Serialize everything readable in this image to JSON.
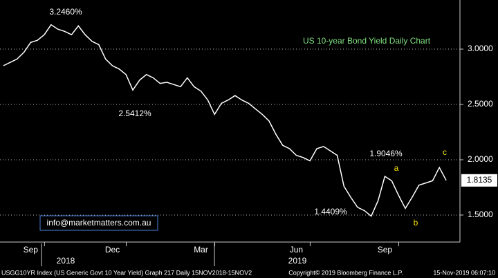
{
  "chart_data": {
    "type": "line",
    "title": "US 10-year Bond Yield Daily Chart",
    "categories": [
      null,
      null,
      null,
      null,
      "Sep",
      null,
      null,
      null,
      null,
      null,
      null,
      null,
      null,
      null,
      null,
      null,
      "Dec",
      null,
      null,
      null,
      null,
      null,
      null,
      null,
      null,
      null,
      null,
      null,
      null,
      "Mar",
      null,
      null,
      null,
      null,
      null,
      null,
      null,
      null,
      null,
      null,
      null,
      null,
      null,
      "Jun",
      null,
      null,
      null,
      null,
      null,
      null,
      null,
      null,
      null,
      null,
      null,
      null,
      "Sep",
      null,
      null,
      null,
      null,
      null,
      null,
      null,
      null,
      null
    ],
    "series": [
      {
        "name": "USGG10YR",
        "color": "#ffffff",
        "values": [
          2.85,
          2.88,
          2.91,
          2.97,
          3.06,
          3.08,
          3.13,
          3.22,
          3.18,
          3.16,
          3.13,
          3.21,
          3.13,
          3.07,
          3.04,
          2.91,
          2.85,
          2.82,
          2.77,
          2.63,
          2.72,
          2.77,
          2.74,
          2.69,
          2.7,
          2.68,
          2.66,
          2.74,
          2.66,
          2.62,
          2.54,
          2.41,
          2.51,
          2.54,
          2.58,
          2.54,
          2.51,
          2.46,
          2.41,
          2.35,
          2.23,
          2.13,
          2.1,
          2.04,
          2.02,
          1.99,
          2.1,
          2.12,
          2.08,
          2.04,
          1.76,
          1.66,
          1.57,
          1.54,
          1.49,
          1.63,
          1.85,
          1.81,
          1.68,
          1.56,
          1.66,
          1.77,
          1.79,
          1.81,
          1.93,
          1.8135
        ]
      }
    ],
    "ylim": [
      1.256,
      3.444
    ],
    "yticks": [
      {
        "value": 1.5,
        "label": "1.5000"
      },
      {
        "value": 2,
        "label": "2.0000"
      },
      {
        "value": 2.5,
        "label": "2.5000"
      },
      {
        "value": 3,
        "label": "3.0000"
      }
    ],
    "grid": true,
    "year_labels": [
      "2018",
      "2019"
    ],
    "annotations": [
      "3.2460%",
      "2.5412%",
      "1.9046%",
      "1.4409%",
      "a",
      "b",
      "c"
    ],
    "contact": "info@marketmatters.com.au"
  },
  "footer": {
    "left": "USGG10YR Index (US Generic Govt 10 Year Yield) Graph 217  Daily 15NOV2018-15NOV2",
    "center": "Copyright© 2019 Bloomberg Finance L.P.",
    "right": "15-Nov-2019 06:07:10"
  }
}
